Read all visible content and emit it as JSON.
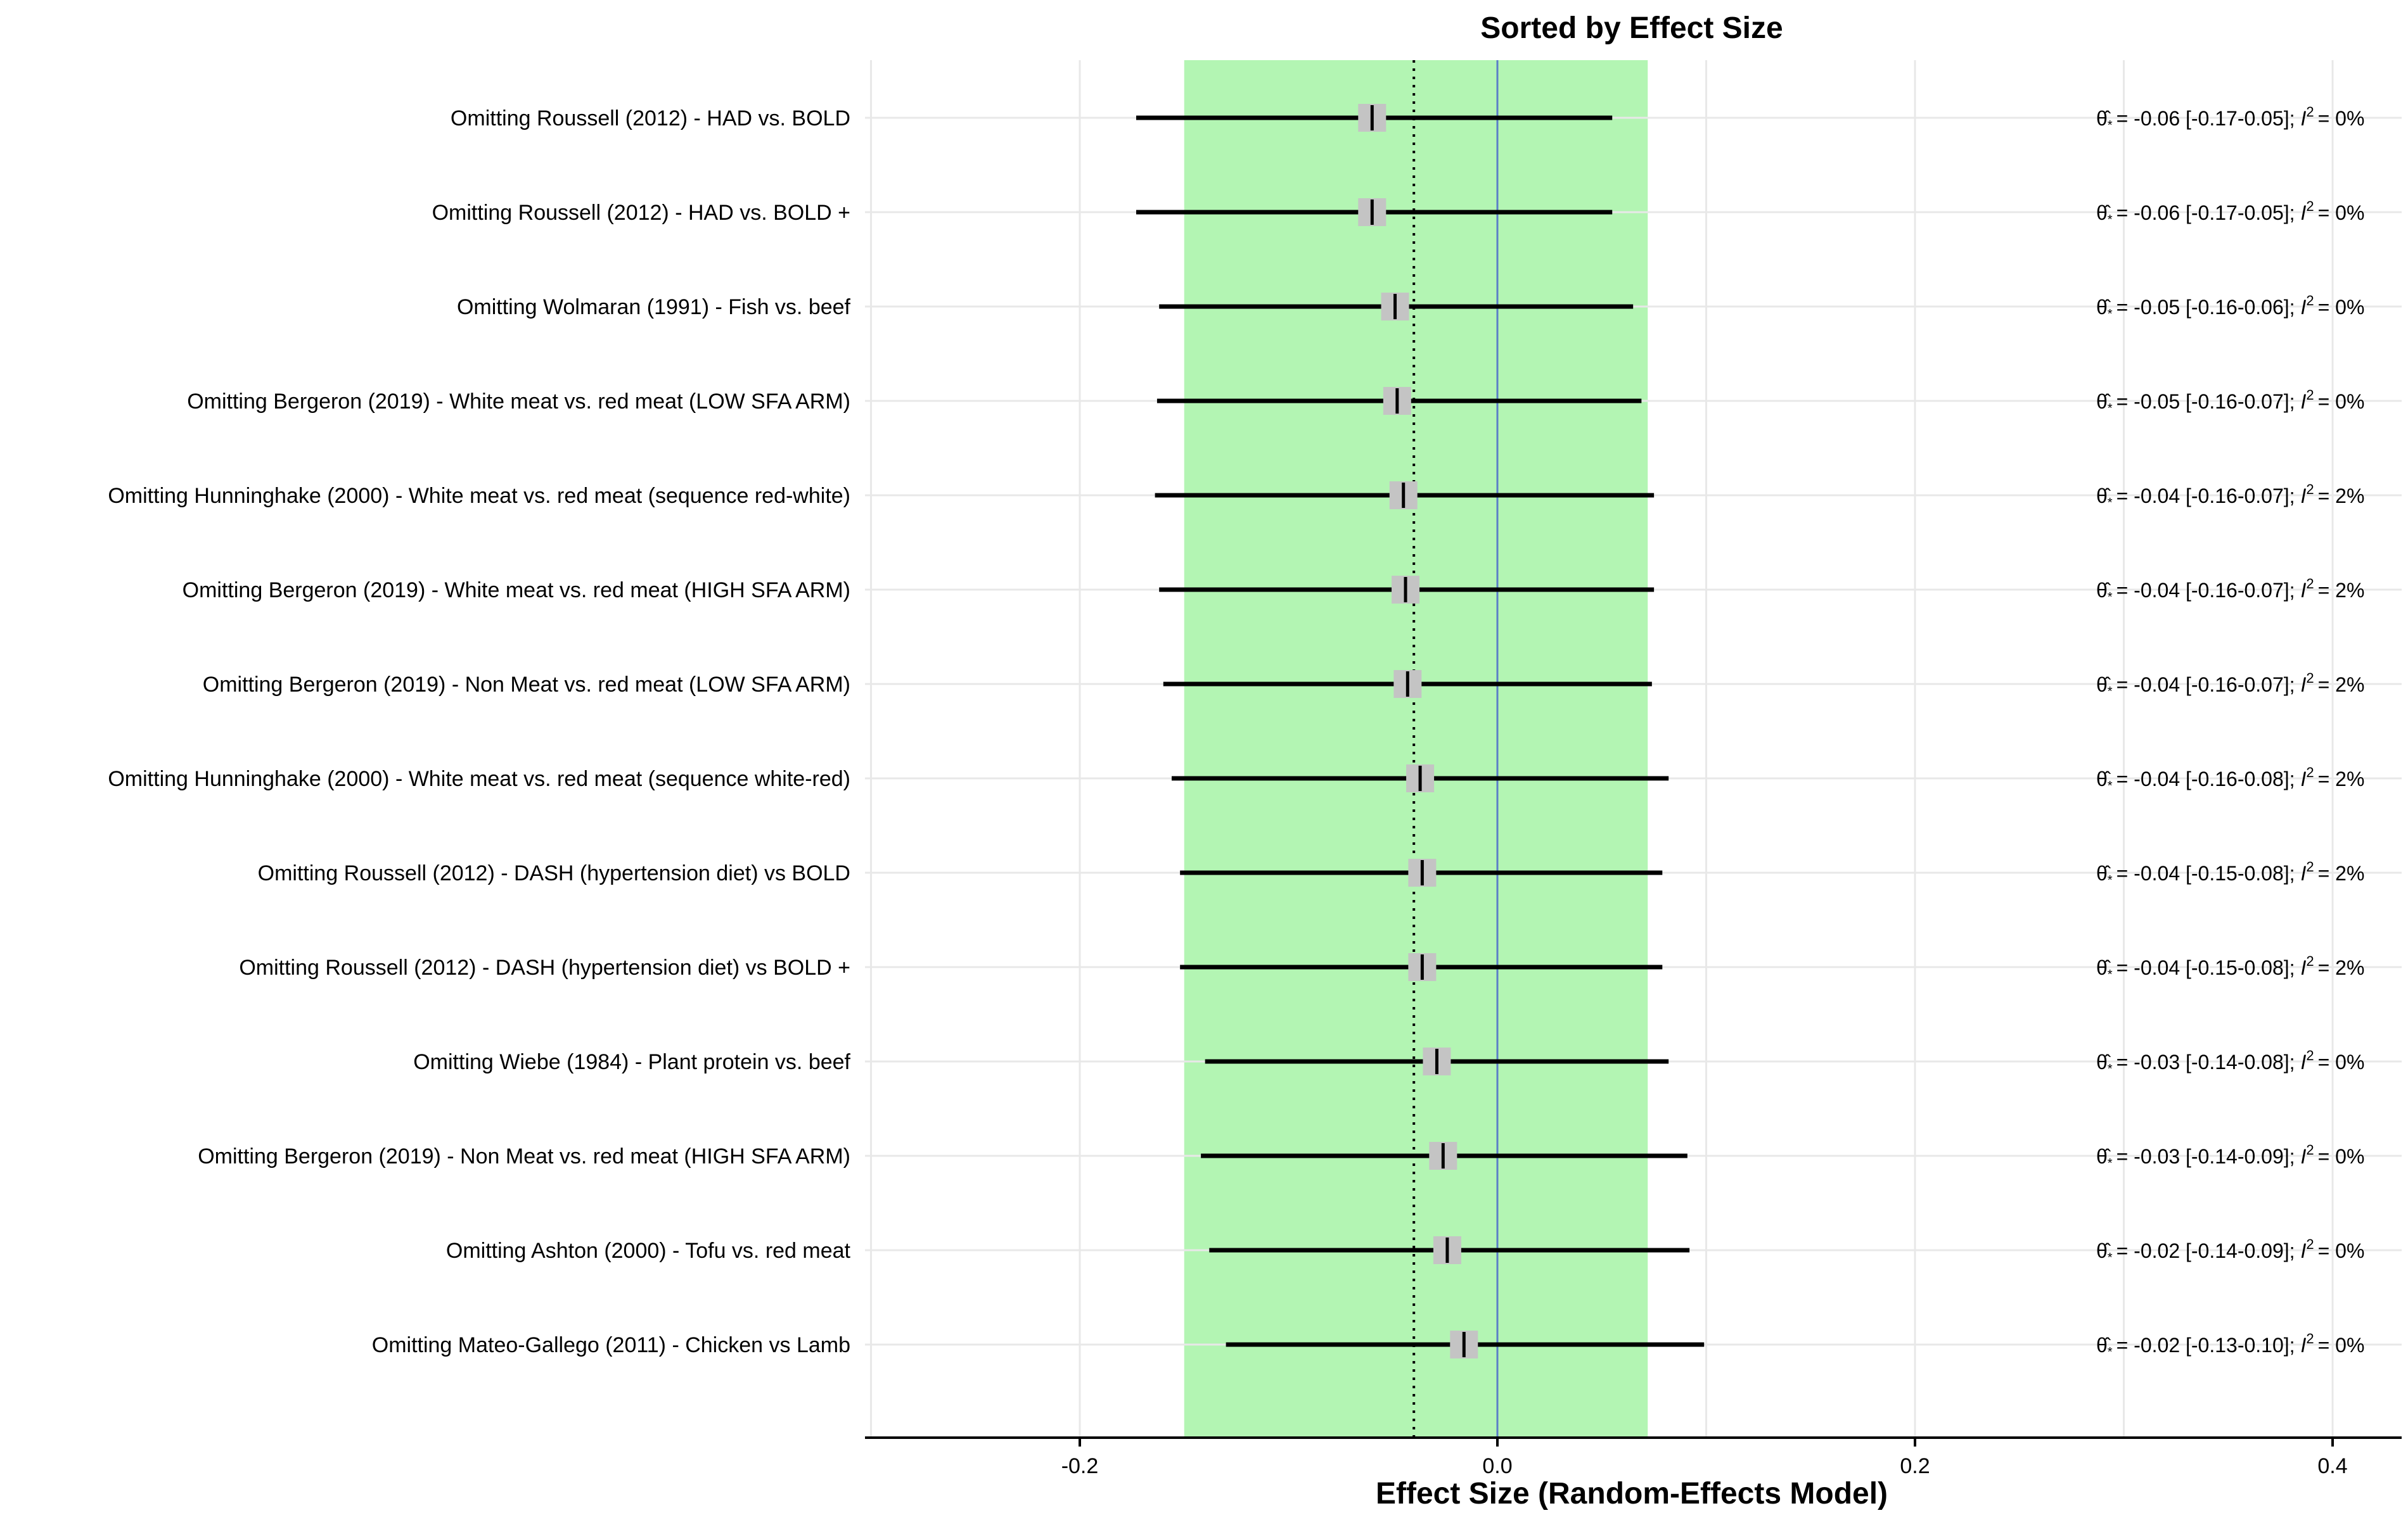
{
  "chart_data": {
    "type": "forest",
    "title": "Sorted by Effect Size",
    "xlabel": "Effect Size (Random-Effects Model)",
    "xlim": [
      -0.3,
      0.43
    ],
    "xticks": [
      -0.2,
      0.0,
      0.2,
      0.4
    ],
    "xtick_labels": [
      "-0.2",
      "0.0",
      "0.2",
      "0.4"
    ],
    "grid": true,
    "reference_line": 0.0,
    "pooled_estimate": -0.04,
    "prediction_band": [
      -0.15,
      0.072
    ],
    "studies": [
      {
        "label": "Omitting Roussell (2012) - HAD vs. BOLD",
        "estimate": -0.06,
        "lower": -0.173,
        "upper": 0.055,
        "annotation": "= -0.06 [-0.17-0.05]; ",
        "i2": "= 0%"
      },
      {
        "label": "Omitting Roussell (2012) - HAD vs. BOLD +",
        "estimate": -0.06,
        "lower": -0.173,
        "upper": 0.055,
        "annotation": "= -0.06 [-0.17-0.05]; ",
        "i2": "= 0%"
      },
      {
        "label": "Omitting Wolmaran (1991) - Fish vs. beef",
        "estimate": -0.049,
        "lower": -0.162,
        "upper": 0.065,
        "annotation": "= -0.05 [-0.16-0.06]; ",
        "i2": "= 0%"
      },
      {
        "label": "Omitting Bergeron (2019) - White meat vs. red meat   (LOW SFA ARM)",
        "estimate": -0.048,
        "lower": -0.163,
        "upper": 0.069,
        "annotation": "= -0.05 [-0.16-0.07]; ",
        "i2": "= 0%"
      },
      {
        "label": "Omitting Hunninghake (2000) - White meat vs. red meat (sequence red-white)",
        "estimate": -0.045,
        "lower": -0.164,
        "upper": 0.075,
        "annotation": "= -0.04 [-0.16-0.07]; ",
        "i2": "= 2%"
      },
      {
        "label": "Omitting Bergeron (2019) - White meat vs. red meat   (HIGH SFA ARM)",
        "estimate": -0.044,
        "lower": -0.162,
        "upper": 0.075,
        "annotation": "= -0.04 [-0.16-0.07]; ",
        "i2": "= 2%"
      },
      {
        "label": "Omitting Bergeron (2019) - Non Meat vs. red meat   (LOW SFA ARM)",
        "estimate": -0.043,
        "lower": -0.16,
        "upper": 0.074,
        "annotation": "= -0.04 [-0.16-0.07]; ",
        "i2": "= 2%"
      },
      {
        "label": "Omitting Hunninghake (2000) - White meat vs. red meat (sequence white-red)",
        "estimate": -0.037,
        "lower": -0.156,
        "upper": 0.082,
        "annotation": "= -0.04 [-0.16-0.08]; ",
        "i2": "= 2%"
      },
      {
        "label": "Omitting Roussell (2012) - DASH (hypertension diet) vs BOLD",
        "estimate": -0.036,
        "lower": -0.152,
        "upper": 0.079,
        "annotation": "= -0.04 [-0.15-0.08]; ",
        "i2": "= 2%"
      },
      {
        "label": "Omitting Roussell (2012) - DASH (hypertension diet) vs BOLD +",
        "estimate": -0.036,
        "lower": -0.152,
        "upper": 0.079,
        "annotation": "= -0.04 [-0.15-0.08]; ",
        "i2": "= 2%"
      },
      {
        "label": "Omitting Wiebe (1984) - Plant protein vs. beef",
        "estimate": -0.029,
        "lower": -0.14,
        "upper": 0.082,
        "annotation": "= -0.03 [-0.14-0.08]; ",
        "i2": "= 0%"
      },
      {
        "label": "Omitting Bergeron (2019) - Non Meat vs. red meat   (HIGH SFA ARM)",
        "estimate": -0.026,
        "lower": -0.142,
        "upper": 0.091,
        "annotation": "= -0.03 [-0.14-0.09]; ",
        "i2": "= 0%"
      },
      {
        "label": "Omitting Ashton (2000) - Tofu vs. red meat",
        "estimate": -0.024,
        "lower": -0.138,
        "upper": 0.092,
        "annotation": "= -0.02 [-0.14-0.09]; ",
        "i2": "= 0%"
      },
      {
        "label": "Omitting Mateo-Gallego (2011) - Chicken vs Lamb",
        "estimate": -0.016,
        "lower": -0.13,
        "upper": 0.099,
        "annotation": "= -0.02 [-0.13-0.10]; ",
        "i2": "= 0%"
      }
    ],
    "colors": {
      "band": "#b3f5b3",
      "reference_line": "#5b7fc7",
      "pooled_line": "#000000",
      "point_box": "#c4c4c4",
      "ci_line": "#000000",
      "grid": "#e8e8e8"
    }
  }
}
